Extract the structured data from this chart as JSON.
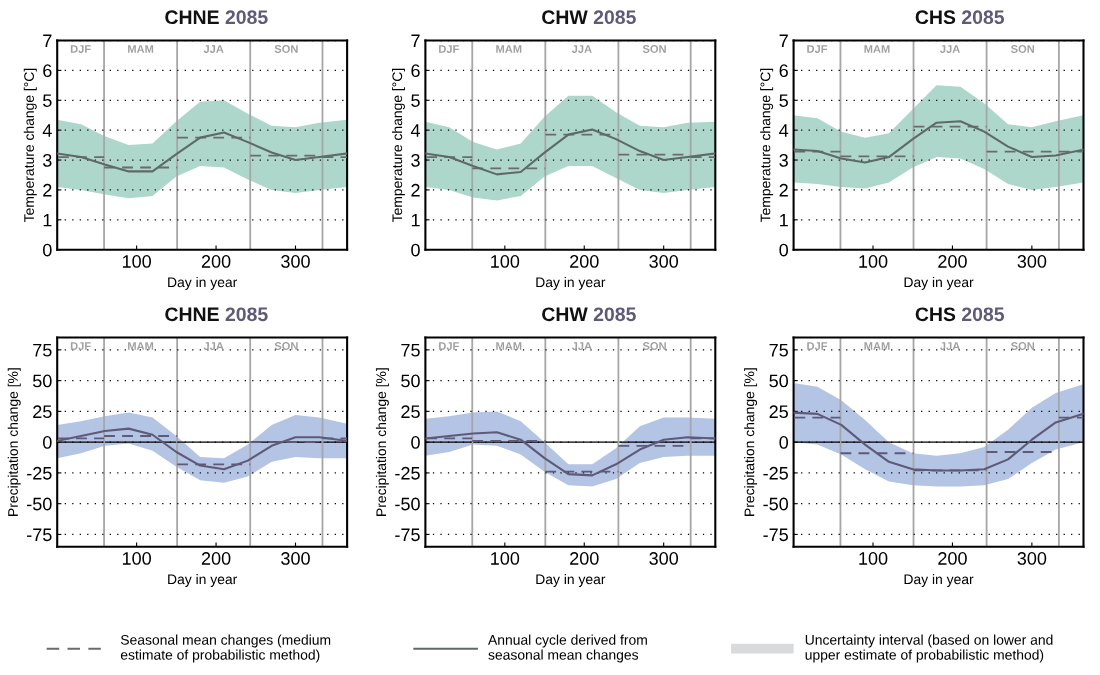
{
  "chart_data": [
    {
      "type": "line",
      "title": "CHNE",
      "subtitle": "2085",
      "xlabel": "Day in year",
      "ylabel": "Temperature change [°C]",
      "xlim": [
        0,
        365
      ],
      "xticks": [
        100,
        200,
        300
      ],
      "ylim": [
        0,
        7
      ],
      "yticks": [
        0,
        1,
        2,
        3,
        4,
        5,
        6,
        7
      ],
      "grid": "y",
      "legend": "bottom",
      "x": [
        0,
        30,
        60,
        90,
        120,
        150,
        180,
        210,
        240,
        270,
        300,
        330,
        365
      ],
      "series": [
        {
          "name": "Seasonal mean changes (medium\nestimate of probabilistic method)",
          "color": "#6b6b6b",
          "line_style": "dashed",
          "x": [
            1,
            59,
            59,
            151,
            151,
            243,
            243,
            334,
            334,
            365
          ],
          "values": [
            3.1,
            3.1,
            2.75,
            2.75,
            3.75,
            3.75,
            3.15,
            3.15,
            3.1,
            3.1
          ]
        },
        {
          "name": "Annual cycle derived from\nseasonal mean changes",
          "color": "#5e6a68",
          "line_style": "solid",
          "values": [
            3.22,
            3.1,
            2.85,
            2.62,
            2.62,
            3.2,
            3.75,
            3.92,
            3.6,
            3.25,
            3.0,
            3.1,
            3.22
          ],
          "lower": [
            2.1,
            2.0,
            1.85,
            1.72,
            1.8,
            2.45,
            2.8,
            2.75,
            2.35,
            2.0,
            1.9,
            2.0,
            2.1
          ],
          "upper": [
            4.35,
            4.2,
            3.8,
            3.5,
            3.55,
            4.3,
            4.95,
            5.0,
            4.55,
            4.15,
            4.1,
            4.25,
            4.35
          ]
        }
      ],
      "ref_lines": [
        {
          "axis": "x",
          "value": 59,
          "color": "#a6a6a6"
        },
        {
          "axis": "x",
          "value": 151,
          "color": "#a6a6a6"
        },
        {
          "axis": "x",
          "value": 243,
          "color": "#a6a6a6"
        },
        {
          "axis": "x",
          "value": 334,
          "color": "#a6a6a6"
        }
      ],
      "annotations": [
        "DJF",
        "MAM",
        "JJA",
        "SON",
        "Uncertainty interval (based on lower and\nupper estimate of probabilistic method)"
      ]
    },
    {
      "type": "line",
      "title": "CHW",
      "subtitle": "2085",
      "xlabel": "Day in year",
      "ylabel": "Temperature change [°C]",
      "xlim": [
        0,
        365
      ],
      "xticks": [
        100,
        200,
        300
      ],
      "ylim": [
        0,
        7
      ],
      "yticks": [
        0,
        1,
        2,
        3,
        4,
        5,
        6,
        7
      ],
      "grid": "y",
      "x": [
        0,
        30,
        60,
        90,
        120,
        150,
        180,
        210,
        240,
        270,
        300,
        330,
        365
      ],
      "series": [
        {
          "color": "#6b6b6b",
          "line_style": "dashed",
          "x": [
            1,
            59,
            59,
            151,
            151,
            243,
            243,
            334,
            334,
            365
          ],
          "values": [
            3.1,
            3.1,
            2.72,
            2.72,
            3.85,
            3.85,
            3.18,
            3.18,
            3.1,
            3.1
          ]
        },
        {
          "color": "#5e6a68",
          "line_style": "solid",
          "values": [
            3.22,
            3.1,
            2.8,
            2.52,
            2.6,
            3.25,
            3.85,
            4.02,
            3.7,
            3.3,
            3.0,
            3.1,
            3.22
          ],
          "lower": [
            2.1,
            2.0,
            1.75,
            1.65,
            1.8,
            2.45,
            2.8,
            2.8,
            2.4,
            2.0,
            1.9,
            2.0,
            2.1
          ],
          "upper": [
            4.28,
            4.1,
            3.6,
            3.35,
            3.55,
            4.45,
            5.15,
            5.15,
            4.6,
            4.15,
            4.1,
            4.25,
            4.28
          ]
        }
      ],
      "ref_lines": [
        {
          "axis": "x",
          "value": 59,
          "color": "#a6a6a6"
        },
        {
          "axis": "x",
          "value": 151,
          "color": "#a6a6a6"
        },
        {
          "axis": "x",
          "value": 243,
          "color": "#a6a6a6"
        },
        {
          "axis": "x",
          "value": 334,
          "color": "#a6a6a6"
        }
      ],
      "annotations": [
        "DJF",
        "MAM",
        "JJA",
        "SON"
      ]
    },
    {
      "type": "line",
      "title": "CHS",
      "subtitle": "2085",
      "xlabel": "Day in year",
      "ylabel": "Temperature change [°C]",
      "xlim": [
        0,
        365
      ],
      "xticks": [
        100,
        200,
        300
      ],
      "ylim": [
        0,
        7
      ],
      "yticks": [
        0,
        1,
        2,
        3,
        4,
        5,
        6,
        7
      ],
      "grid": "y",
      "x": [
        0,
        30,
        60,
        90,
        120,
        150,
        180,
        210,
        240,
        270,
        300,
        330,
        365
      ],
      "series": [
        {
          "color": "#6b6b6b",
          "line_style": "dashed",
          "x": [
            1,
            59,
            59,
            151,
            151,
            243,
            243,
            334,
            334,
            365
          ],
          "values": [
            3.28,
            3.28,
            3.12,
            3.12,
            4.12,
            4.12,
            3.28,
            3.28,
            3.28,
            3.28
          ]
        },
        {
          "color": "#5e6a68",
          "line_style": "solid",
          "values": [
            3.35,
            3.3,
            3.05,
            2.92,
            3.1,
            3.7,
            4.25,
            4.3,
            3.95,
            3.45,
            3.1,
            3.15,
            3.35
          ],
          "lower": [
            2.25,
            2.2,
            2.1,
            2.05,
            2.25,
            2.75,
            3.1,
            3.05,
            2.7,
            2.2,
            2.0,
            2.1,
            2.25
          ],
          "upper": [
            4.5,
            4.4,
            3.95,
            3.75,
            3.9,
            4.7,
            5.5,
            5.45,
            4.9,
            4.2,
            4.1,
            4.3,
            4.5
          ]
        }
      ],
      "ref_lines": [
        {
          "axis": "x",
          "value": 59,
          "color": "#a6a6a6"
        },
        {
          "axis": "x",
          "value": 151,
          "color": "#a6a6a6"
        },
        {
          "axis": "x",
          "value": 243,
          "color": "#a6a6a6"
        },
        {
          "axis": "x",
          "value": 334,
          "color": "#a6a6a6"
        }
      ],
      "annotations": [
        "DJF",
        "MAM",
        "JJA",
        "SON"
      ]
    },
    {
      "type": "line",
      "title": "CHNE",
      "subtitle": "2085",
      "xlabel": "Day in year",
      "ylabel": "Precipitation change [%]",
      "xlim": [
        0,
        365
      ],
      "xticks": [
        100,
        200,
        300
      ],
      "ylim": [
        -85,
        85
      ],
      "yticks": [
        -75,
        -50,
        -25,
        0,
        25,
        50,
        75
      ],
      "grid": "y",
      "x": [
        0,
        30,
        60,
        90,
        120,
        150,
        180,
        210,
        240,
        270,
        300,
        330,
        365
      ],
      "series": [
        {
          "color": "#5e5a78",
          "line_style": "dashed",
          "x": [
            1,
            59,
            59,
            151,
            151,
            243,
            243,
            334,
            334,
            365
          ],
          "values": [
            3,
            3,
            5,
            5,
            -18,
            -18,
            0,
            0,
            3,
            3
          ]
        },
        {
          "color": "#5e5a78",
          "line_style": "solid",
          "values": [
            1,
            5,
            9,
            11,
            6,
            -8,
            -19,
            -22,
            -15,
            -3,
            4,
            4,
            1
          ],
          "lower": [
            -13,
            -9,
            -3,
            -1,
            -7,
            -20,
            -31,
            -33,
            -28,
            -16,
            -12,
            -13,
            -13
          ],
          "upper": [
            14,
            17,
            21,
            24,
            20,
            5,
            -12,
            -13,
            -2,
            14,
            22,
            20,
            15
          ]
        }
      ],
      "ref_lines": [
        {
          "axis": "y",
          "value": 0,
          "color": "#000000"
        },
        {
          "axis": "x",
          "value": 59,
          "color": "#a6a6a6"
        },
        {
          "axis": "x",
          "value": 151,
          "color": "#a6a6a6"
        },
        {
          "axis": "x",
          "value": 243,
          "color": "#a6a6a6"
        },
        {
          "axis": "x",
          "value": 334,
          "color": "#a6a6a6"
        }
      ],
      "annotations": [
        "DJF",
        "MAM",
        "JJA",
        "SON"
      ]
    },
    {
      "type": "line",
      "title": "CHW",
      "subtitle": "2085",
      "xlabel": "Day in year",
      "ylabel": "Precipitation change [%]",
      "xlim": [
        0,
        365
      ],
      "xticks": [
        100,
        200,
        300
      ],
      "ylim": [
        -85,
        85
      ],
      "yticks": [
        -75,
        -50,
        -25,
        0,
        25,
        50,
        75
      ],
      "grid": "y",
      "x": [
        0,
        30,
        60,
        90,
        120,
        150,
        180,
        210,
        240,
        270,
        300,
        330,
        365
      ],
      "series": [
        {
          "color": "#5e5a78",
          "line_style": "dashed",
          "x": [
            1,
            59,
            59,
            151,
            151,
            243,
            243,
            334,
            334,
            365
          ],
          "values": [
            3,
            3,
            1,
            1,
            -24,
            -24,
            -3,
            -3,
            3,
            3
          ]
        },
        {
          "color": "#5e5a78",
          "line_style": "solid",
          "values": [
            3,
            5,
            7,
            8,
            2,
            -13,
            -26,
            -27,
            -18,
            -6,
            2,
            4,
            3
          ],
          "lower": [
            -11,
            -8,
            -2,
            -3,
            -10,
            -24,
            -35,
            -36,
            -30,
            -17,
            -12,
            -11,
            -11
          ],
          "upper": [
            19,
            21,
            24,
            25,
            17,
            0,
            -18,
            -18,
            -5,
            13,
            20,
            20,
            19
          ]
        }
      ],
      "ref_lines": [
        {
          "axis": "y",
          "value": 0,
          "color": "#000000"
        },
        {
          "axis": "x",
          "value": 59,
          "color": "#a6a6a6"
        },
        {
          "axis": "x",
          "value": 151,
          "color": "#a6a6a6"
        },
        {
          "axis": "x",
          "value": 243,
          "color": "#a6a6a6"
        },
        {
          "axis": "x",
          "value": 334,
          "color": "#a6a6a6"
        }
      ],
      "annotations": [
        "DJF",
        "MAM",
        "JJA",
        "SON"
      ]
    },
    {
      "type": "line",
      "title": "CHS",
      "subtitle": "2085",
      "xlabel": "Day in year",
      "ylabel": "Precipitation change [%]",
      "xlim": [
        0,
        365
      ],
      "xticks": [
        100,
        200,
        300
      ],
      "ylim": [
        -85,
        85
      ],
      "yticks": [
        -75,
        -50,
        -25,
        0,
        25,
        50,
        75
      ],
      "grid": "y",
      "x": [
        0,
        30,
        60,
        90,
        120,
        150,
        180,
        210,
        240,
        270,
        300,
        330,
        365
      ],
      "series": [
        {
          "color": "#5e5a78",
          "line_style": "dashed",
          "x": [
            1,
            59,
            59,
            151,
            151,
            243,
            243,
            334,
            334,
            365
          ],
          "values": [
            20,
            20,
            -9,
            -9,
            -23,
            -23,
            -8,
            -8,
            20,
            20
          ]
        },
        {
          "color": "#5e5a78",
          "line_style": "solid",
          "values": [
            24,
            23,
            14,
            -2,
            -16,
            -22,
            -23,
            -23,
            -22,
            -14,
            2,
            16,
            23
          ],
          "lower": [
            0,
            -2,
            -10,
            -22,
            -32,
            -35,
            -36,
            -36,
            -35,
            -30,
            -17,
            -6,
            0
          ],
          "upper": [
            48,
            45,
            34,
            18,
            0,
            -9,
            -11,
            -9,
            -4,
            10,
            28,
            40,
            47
          ]
        }
      ],
      "ref_lines": [
        {
          "axis": "y",
          "value": 0,
          "color": "#000000"
        },
        {
          "axis": "x",
          "value": 59,
          "color": "#a6a6a6"
        },
        {
          "axis": "x",
          "value": 151,
          "color": "#a6a6a6"
        },
        {
          "axis": "x",
          "value": 243,
          "color": "#a6a6a6"
        },
        {
          "axis": "x",
          "value": 334,
          "color": "#a6a6a6"
        }
      ],
      "annotations": [
        "DJF",
        "MAM",
        "JJA",
        "SON"
      ]
    }
  ]
}
